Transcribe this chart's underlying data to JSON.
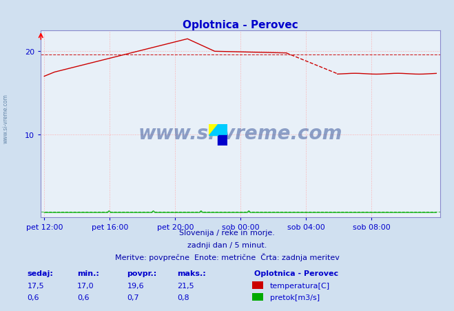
{
  "title": "Oplotnica - Perovec",
  "bg_color": "#d0e0f0",
  "plot_bg_color": "#e8f0f8",
  "grid_color": "#ffaaaa",
  "xticklabels": [
    "pet 12:00",
    "pet 16:00",
    "pet 20:00",
    "sob 00:00",
    "sob 04:00",
    "sob 08:00"
  ],
  "xtick_positions": [
    0,
    96,
    192,
    288,
    384,
    480
  ],
  "total_points": 576,
  "ylim": [
    0,
    22.5
  ],
  "yticks": [
    10,
    20
  ],
  "ylabel_color": "#0000cc",
  "title_color": "#0000cc",
  "axis_color": "#8888cc",
  "avg_temp": 19.6,
  "avg_flow": 0.7,
  "subtitle1": "Slovenija / reke in morje.",
  "subtitle2": "zadnji dan / 5 minut.",
  "subtitle3": "Meritve: povprečne  Enote: metrične  Črta: zadnja meritev",
  "footer_color": "#0000aa",
  "watermark": "www.si-vreme.com",
  "stat_label_color": "#0000cc",
  "legend_title": "Oplotnica - Perovec",
  "temp_color": "#cc0000",
  "flow_color": "#00aa00",
  "sedaj_temp": "17,5",
  "min_temp": "17,0",
  "povpr_temp": "19,6",
  "maks_temp": "21,5",
  "sedaj_flow": "0,6",
  "min_flow": "0,6",
  "povpr_flow": "0,7",
  "maks_flow": "0,8"
}
